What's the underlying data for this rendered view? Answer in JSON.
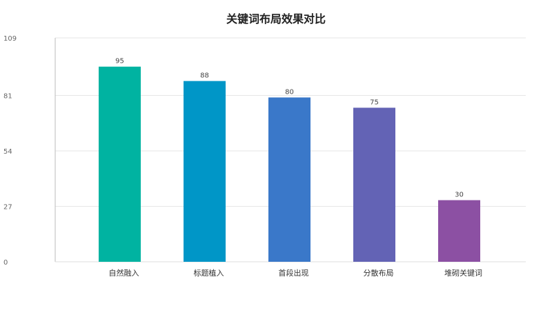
{
  "chart_data": {
    "type": "bar",
    "title": "关键词布局效果对比",
    "xlabel": "",
    "ylabel": "",
    "categories": [
      "自然融入",
      "标题植入",
      "首段出现",
      "分散布局",
      "堆砌关键词"
    ],
    "values": [
      95,
      88,
      80,
      75,
      30
    ],
    "colors": [
      "#00b3a1",
      "#0096c7",
      "#3a78c9",
      "#6363b5",
      "#8c50a3"
    ],
    "ylim": [
      0,
      109
    ],
    "yticks": [
      0,
      27,
      54,
      81,
      109
    ],
    "grid": true,
    "legend": "none"
  }
}
